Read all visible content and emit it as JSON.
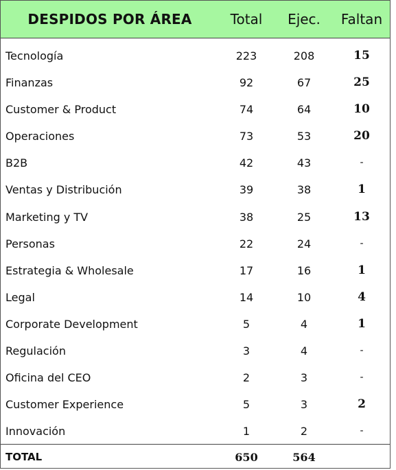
{
  "chart_data": {
    "type": "table",
    "title": "DESPIDOS POR ÁREA",
    "columns": [
      "Total",
      "Ejec.",
      "Faltan"
    ],
    "rows": [
      {
        "area": "Tecnología",
        "total": "223",
        "ejec": "208",
        "faltan": "15"
      },
      {
        "area": "Finanzas",
        "total": "92",
        "ejec": "67",
        "faltan": "25"
      },
      {
        "area": "Customer & Product",
        "total": "74",
        "ejec": "64",
        "faltan": "10"
      },
      {
        "area": "Operaciones",
        "total": "73",
        "ejec": "53",
        "faltan": "20"
      },
      {
        "area": "B2B",
        "total": "42",
        "ejec": "43",
        "faltan": "-"
      },
      {
        "area": "Ventas y Distribución",
        "total": "39",
        "ejec": "38",
        "faltan": "1"
      },
      {
        "area": "Marketing y TV",
        "total": "38",
        "ejec": "25",
        "faltan": "13"
      },
      {
        "area": "Personas",
        "total": "22",
        "ejec": "24",
        "faltan": "-"
      },
      {
        "area": "Estrategia & Wholesale",
        "total": "17",
        "ejec": "16",
        "faltan": "1"
      },
      {
        "area": "Legal",
        "total": "14",
        "ejec": "10",
        "faltan": "4"
      },
      {
        "area": "Corporate Development",
        "total": "5",
        "ejec": "4",
        "faltan": "1"
      },
      {
        "area": "Regulación",
        "total": "3",
        "ejec": "4",
        "faltan": "-"
      },
      {
        "area": "Oficina del CEO",
        "total": "2",
        "ejec": "3",
        "faltan": "-"
      },
      {
        "area": "Customer Experience",
        "total": "5",
        "ejec": "3",
        "faltan": "2"
      },
      {
        "area": "Innovación",
        "total": "1",
        "ejec": "2",
        "faltan": "-"
      }
    ],
    "total_row": {
      "label": "TOTAL",
      "total": "650",
      "ejec": "564",
      "faltan": ""
    },
    "header_color": "#a6f7a0"
  }
}
